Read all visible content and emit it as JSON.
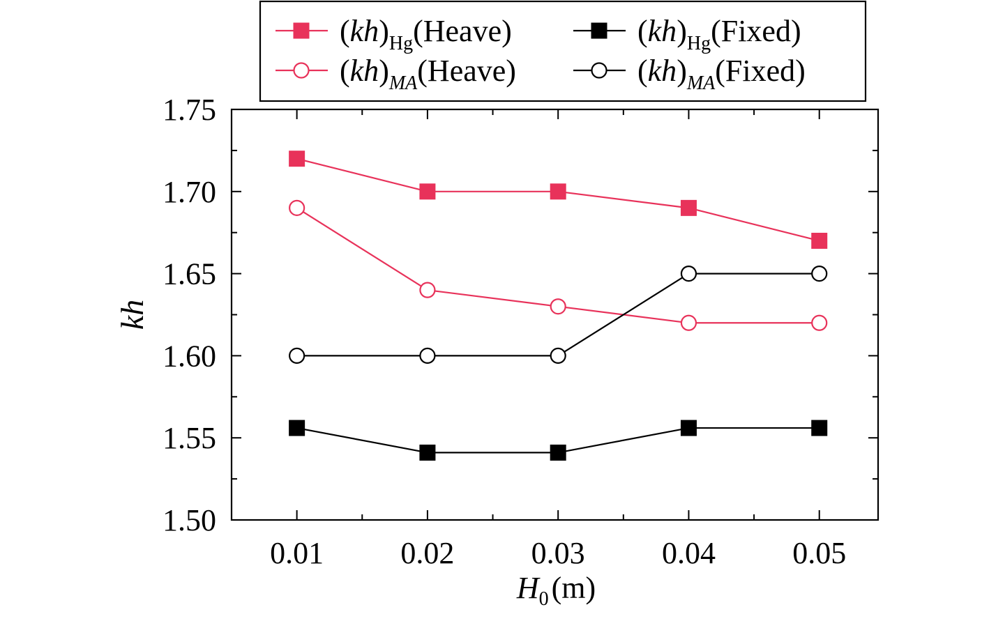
{
  "chart_data": {
    "type": "line",
    "x": [
      0.01,
      0.02,
      0.03,
      0.04,
      0.05
    ],
    "x_tick_labels": [
      "0.01",
      "0.02",
      "0.03",
      "0.04",
      "0.05"
    ],
    "y_tick_labels": [
      "1.50",
      "1.55",
      "1.60",
      "1.65",
      "1.70",
      "1.75"
    ],
    "xlim": [
      0.005,
      0.0545
    ],
    "ylim": [
      1.5,
      1.75
    ],
    "xlabel": {
      "main": "H",
      "sub": "0",
      "rest": "(m)"
    },
    "ylabel": "kh",
    "grid": false,
    "legend_position": "top",
    "series": [
      {
        "name": {
          "pre": "(kh)",
          "sub": "Hg",
          "post": "(Heave)"
        },
        "color": "#e8325a",
        "marker": "square-filled",
        "values": [
          1.72,
          1.7,
          1.7,
          1.69,
          1.67
        ]
      },
      {
        "name": {
          "pre": "(kh)",
          "sub": "Hg",
          "post": "(Fixed)"
        },
        "color": "#000000",
        "marker": "square-filled",
        "values": [
          1.556,
          1.541,
          1.541,
          1.556,
          1.556
        ]
      },
      {
        "name": {
          "pre": "(kh)",
          "sub": "MA",
          "post": "(Heave)"
        },
        "color": "#e8325a",
        "marker": "circle-open",
        "values": [
          1.69,
          1.64,
          1.63,
          1.62,
          1.62
        ]
      },
      {
        "name": {
          "pre": "(kh)",
          "sub": "MA",
          "post": "(Fixed)"
        },
        "color": "#000000",
        "marker": "circle-open",
        "values": [
          1.6,
          1.6,
          1.6,
          1.65,
          1.65
        ]
      }
    ]
  }
}
